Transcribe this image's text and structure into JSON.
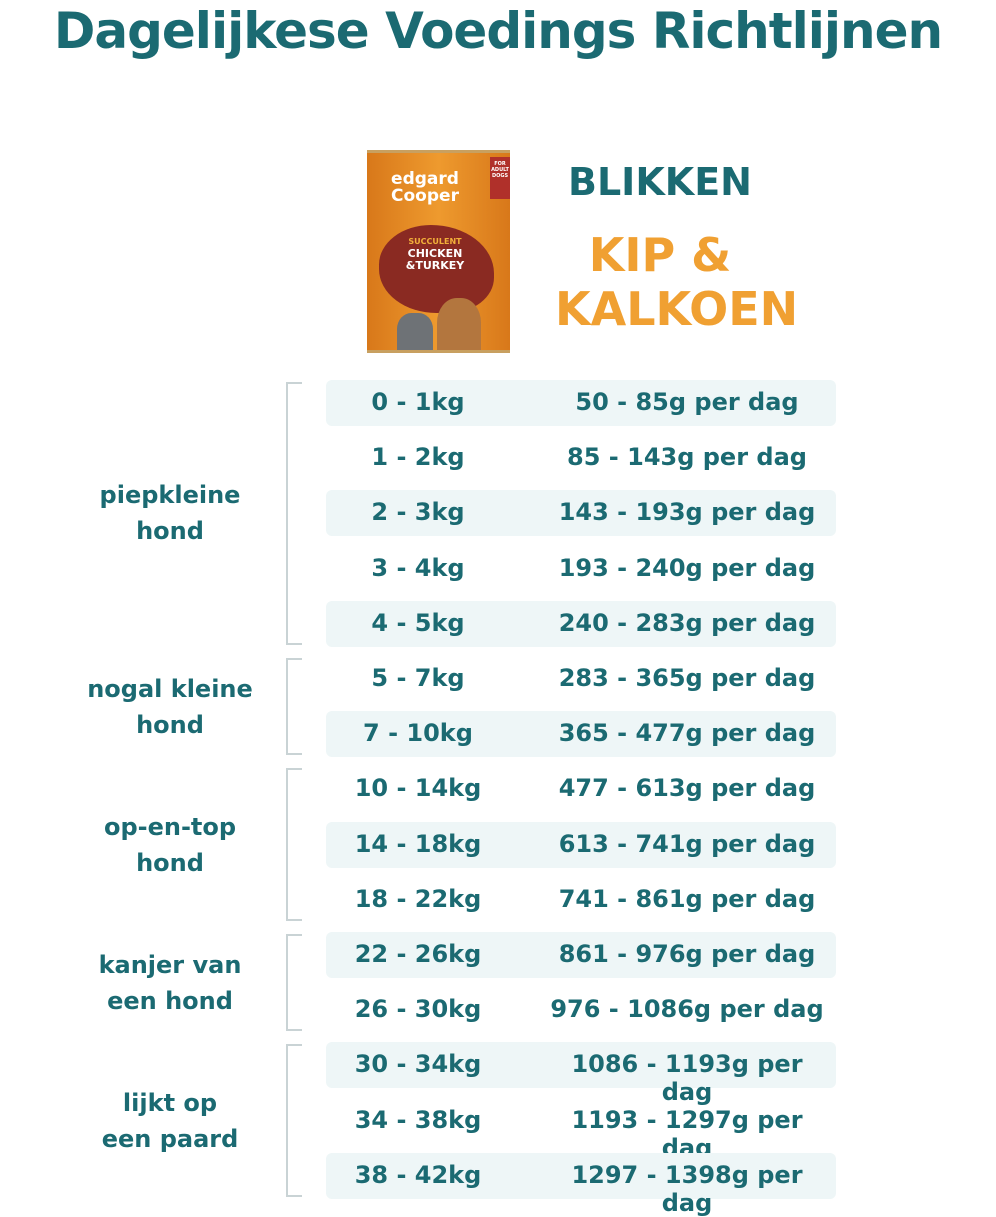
{
  "title": "Dagelijkese Voedings Richtlijnen",
  "product": {
    "image_text": {
      "brand": "edgard Cooper",
      "line1": "SUCCULENT",
      "line2": "CHICKEN",
      "line3": "&TURKEY",
      "badge": "FOR ADULT DOGS"
    },
    "type": "BLIKKEN",
    "flavor_line1": "KIP &",
    "flavor_line2": "KALKOEN"
  },
  "colors": {
    "primary": "#1b6a72",
    "accent": "#f0a032",
    "row_shade": "#eef6f7"
  },
  "groups": [
    {
      "line1": "piepkleine",
      "line2": "hond",
      "rows": [
        0,
        4
      ]
    },
    {
      "line1": "nogal kleine",
      "line2": "hond",
      "rows": [
        5,
        6
      ]
    },
    {
      "line1": "op-en-top",
      "line2": "hond",
      "rows": [
        7,
        9
      ]
    },
    {
      "line1": "kanjer van",
      "line2": "een hond",
      "rows": [
        10,
        11
      ]
    },
    {
      "line1": "lijkt op",
      "line2": "een paard",
      "rows": [
        12,
        14
      ]
    }
  ],
  "rows": [
    {
      "weight": "0 - 1kg",
      "amount": "50 - 85g per dag"
    },
    {
      "weight": "1 - 2kg",
      "amount": "85 - 143g per dag"
    },
    {
      "weight": "2 - 3kg",
      "amount": "143 - 193g per dag"
    },
    {
      "weight": "3 - 4kg",
      "amount": "193 - 240g per dag"
    },
    {
      "weight": "4 - 5kg",
      "amount": "240 - 283g per dag"
    },
    {
      "weight": "5 - 7kg",
      "amount": "283 - 365g per dag"
    },
    {
      "weight": "7 - 10kg",
      "amount": "365 - 477g per dag"
    },
    {
      "weight": "10 - 14kg",
      "amount": "477 - 613g per dag"
    },
    {
      "weight": "14 - 18kg",
      "amount": "613 - 741g per dag"
    },
    {
      "weight": "18 - 22kg",
      "amount": "741 - 861g per dag"
    },
    {
      "weight": "22 - 26kg",
      "amount": "861 - 976g per dag"
    },
    {
      "weight": "26 - 30kg",
      "amount": "976 - 1086g per dag"
    },
    {
      "weight": "30 - 34kg",
      "amount": "1086 - 1193g per dag"
    },
    {
      "weight": "34 - 38kg",
      "amount": "1193 - 1297g per dag"
    },
    {
      "weight": "38 - 42kg",
      "amount": "1297 - 1398g per dag"
    }
  ]
}
